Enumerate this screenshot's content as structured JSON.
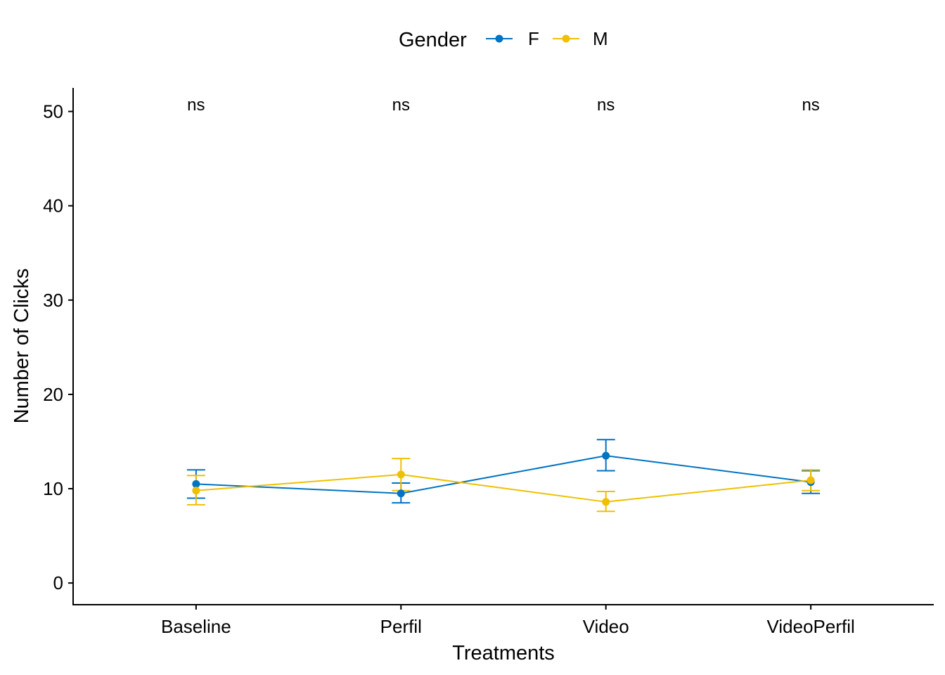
{
  "chart_data": {
    "type": "line",
    "title": "",
    "xlabel": "Treatments",
    "ylabel": "Number of Clicks",
    "categories": [
      "Baseline",
      "Perfil",
      "Video",
      "VideoPerfil"
    ],
    "ylim": [
      -2.3,
      52.5
    ],
    "yticks": [
      0,
      10,
      20,
      30,
      40,
      50
    ],
    "grid": false,
    "legend": {
      "title": "Gender",
      "position": "top"
    },
    "series": [
      {
        "name": "F",
        "color": "#0073C2",
        "values": [
          10.5,
          9.5,
          13.5,
          10.7
        ],
        "err_low": [
          9.0,
          8.5,
          11.9,
          9.5
        ],
        "err_high": [
          12.0,
          10.6,
          15.2,
          11.9
        ]
      },
      {
        "name": "M",
        "color": "#EFC000",
        "values": [
          9.8,
          11.5,
          8.6,
          10.9
        ],
        "err_low": [
          8.3,
          9.8,
          7.6,
          9.8
        ],
        "err_high": [
          11.4,
          13.2,
          9.7,
          12.0
        ]
      }
    ],
    "annotations": [
      {
        "category": "Baseline",
        "y": 50.7,
        "text": "ns"
      },
      {
        "category": "Perfil",
        "y": 50.7,
        "text": "ns"
      },
      {
        "category": "Video",
        "y": 50.7,
        "text": "ns"
      },
      {
        "category": "VideoPerfil",
        "y": 50.7,
        "text": "ns"
      }
    ]
  }
}
